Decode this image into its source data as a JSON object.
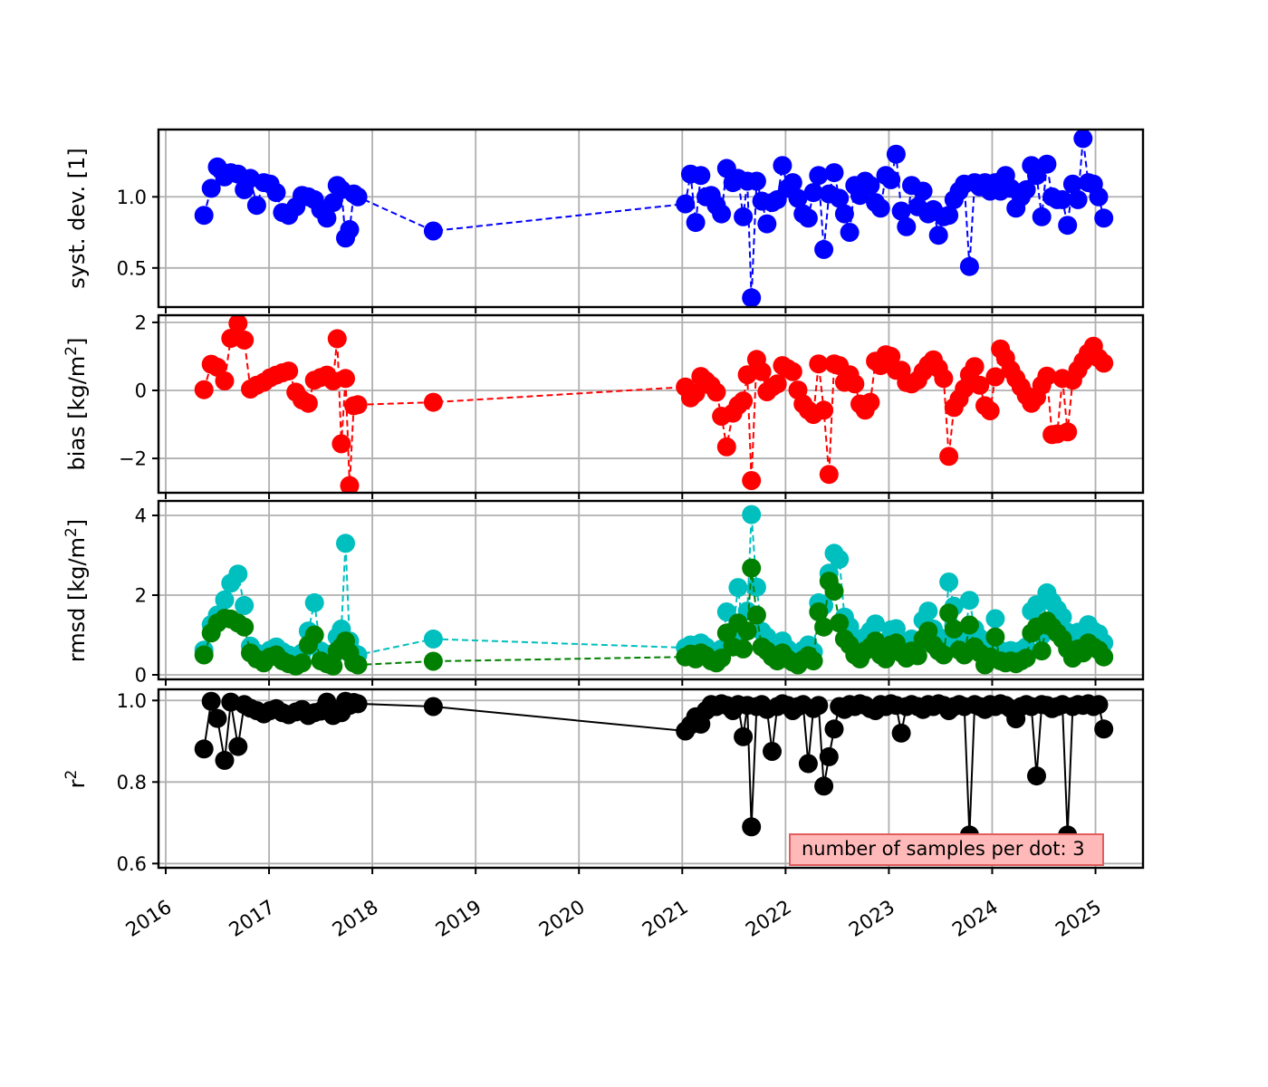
{
  "figure": {
    "background": "#ffffff"
  },
  "annotation": {
    "text": "number of samples per dot: 3",
    "fill": "#ffb9b9",
    "border": "#e25d5d"
  },
  "xaxis": {
    "lim": [
      2015.93,
      2025.46
    ],
    "tick_values": [
      2016,
      2017,
      2018,
      2019,
      2020,
      2021,
      2022,
      2023,
      2024,
      2025
    ],
    "tick_labels": [
      "2016",
      "2017",
      "2018",
      "2019",
      "2020",
      "2021",
      "2022",
      "2023",
      "2024",
      "2025"
    ],
    "grid": true
  },
  "chart_data": {
    "type": "scatter-line-multi-panel",
    "title": "",
    "xlabel": "",
    "legend": "none",
    "x": [
      2016.37,
      2016.44,
      2016.5,
      2016.57,
      2016.63,
      2016.7,
      2016.76,
      2016.82,
      2016.88,
      2016.95,
      2017.01,
      2017.07,
      2017.13,
      2017.19,
      2017.26,
      2017.32,
      2017.38,
      2017.44,
      2017.5,
      2017.56,
      2017.62,
      2017.66,
      2017.7,
      2017.74,
      2017.78,
      2017.82,
      2017.86,
      2018.59,
      2021.03,
      2021.08,
      2021.13,
      2021.18,
      2021.23,
      2021.28,
      2021.33,
      2021.38,
      2021.43,
      2021.49,
      2021.54,
      2021.59,
      2021.63,
      2021.67,
      2021.72,
      2021.77,
      2021.82,
      2021.87,
      2021.92,
      2021.97,
      2022.02,
      2022.07,
      2022.12,
      2022.17,
      2022.22,
      2022.27,
      2022.32,
      2022.37,
      2022.42,
      2022.47,
      2022.52,
      2022.57,
      2022.62,
      2022.67,
      2022.72,
      2022.77,
      2022.82,
      2022.87,
      2022.92,
      2022.97,
      2023.02,
      2023.07,
      2023.12,
      2023.17,
      2023.22,
      2023.28,
      2023.33,
      2023.38,
      2023.43,
      2023.48,
      2023.53,
      2023.58,
      2023.63,
      2023.68,
      2023.73,
      2023.78,
      2023.83,
      2023.88,
      2023.93,
      2023.98,
      2024.03,
      2024.08,
      2024.13,
      2024.18,
      2024.23,
      2024.28,
      2024.33,
      2024.38,
      2024.43,
      2024.48,
      2024.53,
      2024.58,
      2024.63,
      2024.68,
      2024.73,
      2024.78,
      2024.83,
      2024.88,
      2024.93,
      2024.98,
      2025.03,
      2025.08
    ],
    "panels": [
      {
        "id": "systdev",
        "ylabel": {
          "pre": "syst. dev. [1]",
          "sup": "",
          "post": ""
        },
        "ylim": [
          0.225,
          1.473
        ],
        "ytick_values": [
          0.5,
          1.0
        ],
        "ytick_labels": [
          "0.5",
          "1.0"
        ],
        "series": [
          {
            "id": "systdev",
            "name": "syst. dev.",
            "color": "#0000ff",
            "linestyle": "dashed",
            "y": [
              0.87,
              1.06,
              1.21,
              1.14,
              1.17,
              1.16,
              1.05,
              1.13,
              0.94,
              1.1,
              1.09,
              1.03,
              0.89,
              0.87,
              0.93,
              1.01,
              1.0,
              0.98,
              0.91,
              0.85,
              0.96,
              1.08,
              1.05,
              0.71,
              0.77,
              1.02,
              1.0,
              0.76,
              0.95,
              1.16,
              0.82,
              1.15,
              1.0,
              1.01,
              0.94,
              0.88,
              1.2,
              1.1,
              1.13,
              0.86,
              1.11,
              0.29,
              1.11,
              0.97,
              0.81,
              0.96,
              0.98,
              1.22,
              1.06,
              1.1,
              0.99,
              0.88,
              0.85,
              1.03,
              1.15,
              0.63,
              1.02,
              1.17,
              0.99,
              0.88,
              0.75,
              1.08,
              1.01,
              1.11,
              1.08,
              0.96,
              0.92,
              1.15,
              1.12,
              1.3,
              0.9,
              0.79,
              1.08,
              0.93,
              1.04,
              0.88,
              0.91,
              0.73,
              0.86,
              0.87,
              0.98,
              1.04,
              1.09,
              0.51,
              1.1,
              1.07,
              1.1,
              1.04,
              1.1,
              1.04,
              1.15,
              1.06,
              0.92,
              1.0,
              1.05,
              1.22,
              1.15,
              0.86,
              1.23,
              1.0,
              0.98,
              0.98,
              0.8,
              1.09,
              0.98,
              1.41,
              1.1,
              1.09,
              1.0,
              0.85
            ]
          }
        ]
      },
      {
        "id": "bias",
        "ylabel": {
          "pre": "bias [kg/m",
          "sup": "2",
          "post": "]"
        },
        "ylim": [
          -3.01,
          2.21
        ],
        "ytick_values": [
          -2,
          0,
          2
        ],
        "ytick_labels": [
          "−2",
          "0",
          "2"
        ],
        "series": [
          {
            "id": "bias",
            "name": "bias",
            "color": "#ff0000",
            "linestyle": "dashed",
            "y": [
              0.02,
              0.77,
              0.68,
              0.28,
              1.53,
              1.97,
              1.48,
              0.04,
              0.15,
              0.24,
              0.37,
              0.45,
              0.52,
              0.57,
              -0.05,
              -0.28,
              -0.38,
              0.3,
              0.38,
              0.45,
              0.28,
              1.52,
              -1.57,
              0.35,
              -2.8,
              -0.45,
              -0.42,
              -0.35,
              0.1,
              -0.22,
              -0.08,
              0.41,
              0.28,
              0.14,
              -0.05,
              -0.76,
              -1.66,
              -0.67,
              -0.44,
              -0.31,
              0.46,
              -2.65,
              0.91,
              0.55,
              -0.04,
              0.1,
              0.19,
              0.73,
              0.64,
              0.55,
              0.01,
              -0.4,
              -0.58,
              -0.71,
              0.78,
              -0.58,
              -2.47,
              0.78,
              0.73,
              0.24,
              0.46,
              0.19,
              -0.4,
              -0.58,
              -0.35,
              0.86,
              0.73,
              1.05,
              1.0,
              0.59,
              0.59,
              0.23,
              0.19,
              0.3,
              0.55,
              0.75,
              0.9,
              0.65,
              0.35,
              -1.94,
              -0.5,
              -0.25,
              0.05,
              0.46,
              0.7,
              0.15,
              -0.45,
              -0.6,
              0.4,
              1.22,
              0.95,
              0.6,
              0.35,
              0.1,
              -0.15,
              -0.38,
              -0.2,
              0.15,
              0.42,
              -1.3,
              -1.28,
              0.35,
              -1.22,
              0.3,
              0.6,
              0.85,
              1.1,
              1.3,
              0.95,
              0.8
            ]
          }
        ]
      },
      {
        "id": "rmsd",
        "ylabel": {
          "pre": "rmsd [kg/m",
          "sup": "2",
          "post": "]"
        },
        "ylim": [
          -0.114,
          4.364
        ],
        "ytick_values": [
          0,
          2,
          4
        ],
        "ytick_labels": [
          "0",
          "2",
          "4"
        ],
        "series": [
          {
            "id": "rmsd-total",
            "name": "rmsd",
            "color": "#00bfbf",
            "linestyle": "dashed",
            "y": [
              0.62,
              1.26,
              1.5,
              1.88,
              2.3,
              2.53,
              1.74,
              0.72,
              0.55,
              0.48,
              0.62,
              0.7,
              0.58,
              0.5,
              0.45,
              0.55,
              1.1,
              1.81,
              0.6,
              0.52,
              0.48,
              0.95,
              1.15,
              3.3,
              0.85,
              0.55,
              0.5,
              0.9,
              0.68,
              0.75,
              0.62,
              0.8,
              0.7,
              0.58,
              0.52,
              0.65,
              1.58,
              1.1,
              2.19,
              1.06,
              1.6,
              4.02,
              2.2,
              1.09,
              0.95,
              0.72,
              0.6,
              0.85,
              0.65,
              0.55,
              0.48,
              0.62,
              0.75,
              0.58,
              1.81,
              1.74,
              2.55,
              3.05,
              2.9,
              1.45,
              1.21,
              0.85,
              0.72,
              0.95,
              1.1,
              1.28,
              0.8,
              0.68,
              1.13,
              1.16,
              0.85,
              0.72,
              0.9,
              0.78,
              1.37,
              1.6,
              1.15,
              0.95,
              0.8,
              2.33,
              1.72,
              0.99,
              0.85,
              1.87,
              1.15,
              0.92,
              0.46,
              0.75,
              1.41,
              0.61,
              0.55,
              0.61,
              0.5,
              0.61,
              0.7,
              1.6,
              1.76,
              0.99,
              2.06,
              1.83,
              1.64,
              1.45,
              1.07,
              0.73,
              1.07,
              0.9,
              1.26,
              1.1,
              1.03,
              0.8
            ]
          },
          {
            "id": "rmsd-corrected",
            "name": "rmsd (green)",
            "color": "#008000",
            "linestyle": "dashed",
            "y": [
              0.5,
              1.05,
              1.3,
              1.42,
              1.4,
              1.3,
              1.2,
              0.55,
              0.4,
              0.3,
              0.45,
              0.5,
              0.35,
              0.28,
              0.22,
              0.3,
              0.75,
              1.0,
              0.35,
              0.28,
              0.22,
              0.6,
              0.7,
              0.85,
              0.55,
              0.3,
              0.25,
              0.34,
              0.45,
              0.52,
              0.4,
              0.55,
              0.48,
              0.35,
              0.3,
              0.42,
              1.05,
              0.7,
              1.3,
              0.65,
              1.1,
              2.68,
              1.5,
              0.7,
              0.6,
              0.45,
              0.35,
              0.55,
              0.4,
              0.32,
              0.25,
              0.38,
              0.48,
              0.35,
              1.58,
              1.2,
              2.35,
              2.1,
              1.3,
              0.9,
              0.75,
              0.5,
              0.4,
              0.6,
              0.7,
              0.85,
              0.5,
              0.4,
              0.75,
              0.8,
              0.55,
              0.42,
              0.6,
              0.48,
              0.9,
              1.1,
              0.75,
              0.6,
              0.5,
              1.55,
              1.15,
              0.62,
              0.5,
              1.25,
              0.7,
              0.55,
              0.25,
              0.45,
              0.95,
              0.35,
              0.3,
              0.35,
              0.28,
              0.35,
              0.42,
              1.05,
              1.2,
              0.6,
              1.35,
              1.2,
              1.05,
              0.9,
              0.65,
              0.42,
              0.65,
              0.55,
              0.8,
              0.7,
              0.62,
              0.45
            ]
          }
        ]
      },
      {
        "id": "r2",
        "ylabel": {
          "pre": "r",
          "sup": "2",
          "post": ""
        },
        "ylim": [
          0.5896,
          1.0273
        ],
        "ytick_values": [
          0.6,
          0.8,
          1.0
        ],
        "ytick_labels": [
          "0.6",
          "0.8",
          "1.0"
        ],
        "series": [
          {
            "id": "r2",
            "name": "r2",
            "color": "#000000",
            "linestyle": "solid",
            "y": [
              0.881,
              0.998,
              0.956,
              0.853,
              0.996,
              0.887,
              0.99,
              0.981,
              0.975,
              0.967,
              0.975,
              0.98,
              0.97,
              0.965,
              0.972,
              0.978,
              0.963,
              0.97,
              0.974,
              0.996,
              0.963,
              0.97,
              0.97,
              0.998,
              0.988,
              0.995,
              0.992,
              0.985,
              0.925,
              0.94,
              0.96,
              0.942,
              0.975,
              0.99,
              0.985,
              0.992,
              0.988,
              0.975,
              0.99,
              0.911,
              0.988,
              0.69,
              0.985,
              0.99,
              0.978,
              0.875,
              0.985,
              0.992,
              0.988,
              0.975,
              0.985,
              0.99,
              0.845,
              0.98,
              0.988,
              0.79,
              0.862,
              0.93,
              0.985,
              0.978,
              0.99,
              0.985,
              0.992,
              0.988,
              0.98,
              0.975,
              0.99,
              0.985,
              0.992,
              0.988,
              0.92,
              0.985,
              0.99,
              0.985,
              0.978,
              0.99,
              0.985,
              0.992,
              0.988,
              0.975,
              0.985,
              0.99,
              0.985,
              0.67,
              0.99,
              0.985,
              0.978,
              0.99,
              0.985,
              0.992,
              0.988,
              0.98,
              0.955,
              0.985,
              0.99,
              0.985,
              0.815,
              0.99,
              0.988,
              0.98,
              0.985,
              0.99,
              0.67,
              0.985,
              0.99,
              0.988,
              0.992,
              0.985,
              0.99,
              0.93
            ]
          }
        ]
      }
    ]
  }
}
